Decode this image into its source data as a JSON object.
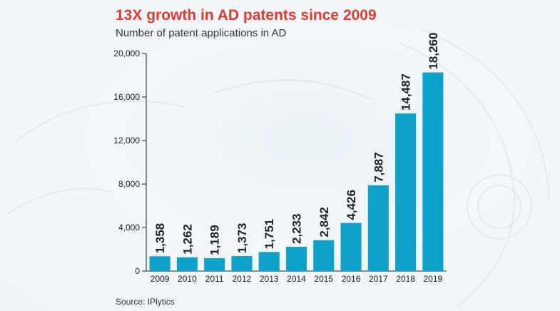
{
  "header": {
    "title": "13X growth in AD patents since 2009",
    "subtitle": "Number of patent applications in AD"
  },
  "footer": {
    "source": "Source: IPlytics"
  },
  "colors": {
    "bar": "#0ea1c9",
    "title": "#e03a2f",
    "axis": "#222222"
  },
  "chart_data": {
    "type": "bar",
    "categories": [
      "2009",
      "2010",
      "2011",
      "2012",
      "2013",
      "2014",
      "2015",
      "2016",
      "2017",
      "2018",
      "2019"
    ],
    "values": [
      1358,
      1262,
      1189,
      1373,
      1751,
      2233,
      2842,
      4426,
      7887,
      14487,
      18260
    ],
    "value_labels": [
      "1,358",
      "1,262",
      "1,189",
      "1,373",
      "1,751",
      "2,233",
      "2,842",
      "4,426",
      "7,887",
      "14,487",
      "18,260"
    ],
    "yticks": [
      0,
      4000,
      8000,
      12000,
      16000,
      20000
    ],
    "ytick_labels": [
      "0",
      "4,000",
      "8,000",
      "12,000",
      "16,000",
      "20,000"
    ],
    "ylim": [
      0,
      20000
    ],
    "title": "13X growth in AD patents since 2009",
    "xlabel": "",
    "ylabel": "",
    "grid": false,
    "legend": "none"
  }
}
